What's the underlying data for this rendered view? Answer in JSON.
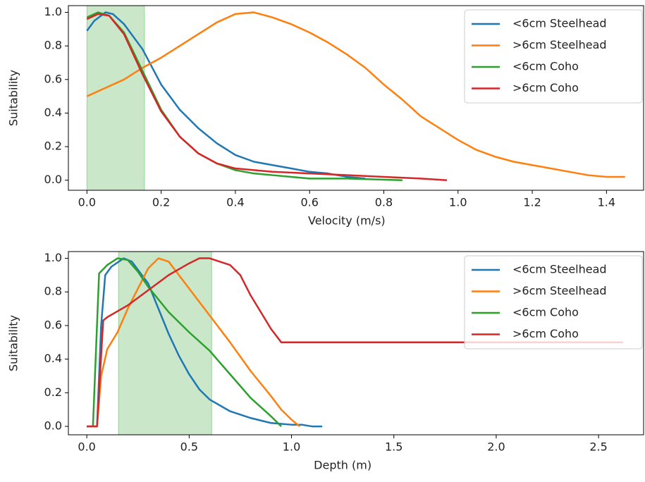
{
  "chart_data": [
    {
      "type": "line",
      "xlabel": "Velocity (m/s)",
      "ylabel": "Suitability",
      "legend": "upper right",
      "shade": [
        0,
        0.155
      ],
      "shade_color": "#2ca02c",
      "xlim": [
        -0.05,
        1.5
      ],
      "ylim": [
        -0.06,
        1.04
      ],
      "xticks": [
        {
          "value": 0,
          "label": "0.0"
        },
        {
          "value": 0.2,
          "label": "0.2"
        },
        {
          "value": 0.4,
          "label": "0.4"
        },
        {
          "value": 0.6,
          "label": "0.6"
        },
        {
          "value": 0.8,
          "label": "0.8"
        },
        {
          "value": 1.0,
          "label": "1.0"
        },
        {
          "value": 1.2,
          "label": "1.2"
        },
        {
          "value": 1.4,
          "label": "1.4"
        }
      ],
      "yticks": [
        {
          "value": 0,
          "label": "0.0"
        },
        {
          "value": 0.2,
          "label": "0.2"
        },
        {
          "value": 0.4,
          "label": "0.4"
        },
        {
          "value": 0.6,
          "label": "0.6"
        },
        {
          "value": 0.8,
          "label": "0.8"
        },
        {
          "value": 1.0,
          "label": "1.0"
        }
      ],
      "series": [
        {
          "name": "<6cm Steelhead",
          "color": "#1f77b4",
          "x": [
            0,
            0.02,
            0.05,
            0.07,
            0.1,
            0.15,
            0.2,
            0.25,
            0.3,
            0.35,
            0.4,
            0.45,
            0.5,
            0.55,
            0.6,
            0.65,
            0.7,
            0.75
          ],
          "values": [
            0.89,
            0.95,
            1.0,
            0.99,
            0.93,
            0.78,
            0.57,
            0.42,
            0.31,
            0.22,
            0.15,
            0.11,
            0.09,
            0.07,
            0.05,
            0.04,
            0.02,
            0.01
          ]
        },
        {
          "name": ">6cm Steelhead",
          "color": "#ff7f0e",
          "x": [
            0,
            0.05,
            0.1,
            0.15,
            0.2,
            0.25,
            0.3,
            0.35,
            0.4,
            0.45,
            0.5,
            0.55,
            0.6,
            0.65,
            0.7,
            0.75,
            0.8,
            0.85,
            0.9,
            0.95,
            1.0,
            1.05,
            1.1,
            1.15,
            1.2,
            1.25,
            1.3,
            1.35,
            1.4,
            1.45
          ],
          "values": [
            0.5,
            0.55,
            0.6,
            0.67,
            0.73,
            0.8,
            0.87,
            0.94,
            0.99,
            1.0,
            0.97,
            0.93,
            0.88,
            0.82,
            0.75,
            0.67,
            0.57,
            0.48,
            0.38,
            0.31,
            0.24,
            0.18,
            0.14,
            0.11,
            0.09,
            0.07,
            0.05,
            0.03,
            0.02,
            0.02
          ]
        },
        {
          "name": "<6cm Coho",
          "color": "#2ca02c",
          "x": [
            0,
            0.03,
            0.06,
            0.1,
            0.15,
            0.2,
            0.25,
            0.3,
            0.35,
            0.4,
            0.45,
            0.5,
            0.55,
            0.6,
            0.7,
            0.85
          ],
          "values": [
            0.97,
            1.0,
            0.98,
            0.88,
            0.65,
            0.42,
            0.26,
            0.16,
            0.1,
            0.06,
            0.04,
            0.03,
            0.02,
            0.01,
            0.01,
            0.0
          ]
        },
        {
          "name": ">6cm Coho",
          "color": "#d62728",
          "x": [
            0,
            0.03,
            0.06,
            0.1,
            0.15,
            0.2,
            0.25,
            0.3,
            0.35,
            0.4,
            0.5,
            0.6,
            0.7,
            0.8,
            0.9,
            0.97
          ],
          "values": [
            0.96,
            0.99,
            0.98,
            0.87,
            0.63,
            0.41,
            0.26,
            0.16,
            0.1,
            0.07,
            0.05,
            0.04,
            0.03,
            0.02,
            0.01,
            0.0
          ]
        }
      ]
    },
    {
      "type": "line",
      "xlabel": "Depth (m)",
      "ylabel": "Suitability",
      "legend": "upper right",
      "shade": [
        0.155,
        0.61
      ],
      "shade_color": "#2ca02c",
      "xlim": [
        -0.09,
        2.72
      ],
      "ylim": [
        -0.05,
        1.04
      ],
      "xticks": [
        {
          "value": 0,
          "label": "0.0"
        },
        {
          "value": 0.5,
          "label": "0.5"
        },
        {
          "value": 1.0,
          "label": "1.0"
        },
        {
          "value": 1.5,
          "label": "1.5"
        },
        {
          "value": 2.0,
          "label": "2.0"
        },
        {
          "value": 2.5,
          "label": "2.5"
        }
      ],
      "yticks": [
        {
          "value": 0,
          "label": "0.0"
        },
        {
          "value": 0.2,
          "label": "0.2"
        },
        {
          "value": 0.4,
          "label": "0.4"
        },
        {
          "value": 0.6,
          "label": "0.6"
        },
        {
          "value": 0.8,
          "label": "0.8"
        },
        {
          "value": 1.0,
          "label": "1.0"
        }
      ],
      "series": [
        {
          "name": "<6cm Steelhead",
          "color": "#1f77b4",
          "x": [
            0,
            0.05,
            0.07,
            0.09,
            0.12,
            0.18,
            0.22,
            0.3,
            0.35,
            0.4,
            0.45,
            0.5,
            0.55,
            0.6,
            0.7,
            0.8,
            0.9,
            1.0,
            1.05,
            1.1,
            1.15
          ],
          "values": [
            0,
            0,
            0.6,
            0.9,
            0.95,
            1.0,
            0.98,
            0.85,
            0.7,
            0.55,
            0.42,
            0.31,
            0.22,
            0.16,
            0.09,
            0.05,
            0.02,
            0.01,
            0.01,
            0.0,
            0.0
          ]
        },
        {
          "name": ">6cm Steelhead",
          "color": "#ff7f0e",
          "x": [
            0,
            0.05,
            0.07,
            0.1,
            0.15,
            0.2,
            0.25,
            0.3,
            0.35,
            0.4,
            0.45,
            0.5,
            0.6,
            0.7,
            0.8,
            0.9,
            0.95,
            1.0,
            1.04
          ],
          "values": [
            0,
            0,
            0.3,
            0.46,
            0.56,
            0.7,
            0.82,
            0.94,
            1.0,
            0.98,
            0.9,
            0.82,
            0.66,
            0.5,
            0.33,
            0.18,
            0.1,
            0.04,
            0.0
          ]
        },
        {
          "name": "<6cm Coho",
          "color": "#2ca02c",
          "x": [
            0,
            0.03,
            0.06,
            0.1,
            0.15,
            0.2,
            0.25,
            0.3,
            0.4,
            0.5,
            0.6,
            0.7,
            0.8,
            0.9,
            0.95
          ],
          "values": [
            0,
            0,
            0.91,
            0.96,
            1.0,
            0.99,
            0.92,
            0.83,
            0.68,
            0.56,
            0.45,
            0.31,
            0.17,
            0.06,
            0.0
          ]
        },
        {
          "name": ">6cm Coho",
          "color": "#d62728",
          "x": [
            0,
            0.05,
            0.08,
            0.1,
            0.2,
            0.3,
            0.4,
            0.5,
            0.55,
            0.6,
            0.7,
            0.75,
            0.8,
            0.9,
            0.95,
            1.5,
            2.0,
            2.62
          ],
          "values": [
            0,
            0,
            0.63,
            0.65,
            0.72,
            0.81,
            0.9,
            0.97,
            1.0,
            1.0,
            0.96,
            0.9,
            0.78,
            0.58,
            0.5,
            0.5,
            0.5,
            0.5
          ]
        }
      ]
    }
  ]
}
